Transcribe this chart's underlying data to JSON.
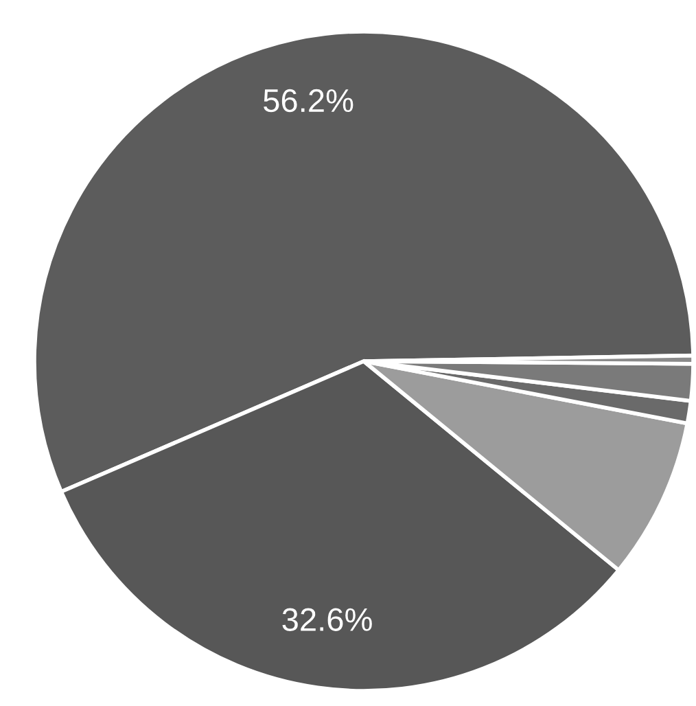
{
  "chart_data": {
    "type": "pie",
    "categories": [
      null,
      null,
      null,
      null,
      null,
      null
    ],
    "values": [
      56.2,
      32.6,
      7.9,
      1.1,
      1.8,
      0.4
    ],
    "colors": [
      "#5c5c5c",
      "#575757",
      "#9c9c9c",
      "#6a6a6a",
      "#7a7a7a",
      "#8a8a8a"
    ],
    "value_labels": [
      "56.2%",
      "32.6%",
      null,
      null,
      null,
      null
    ],
    "legend": false
  }
}
